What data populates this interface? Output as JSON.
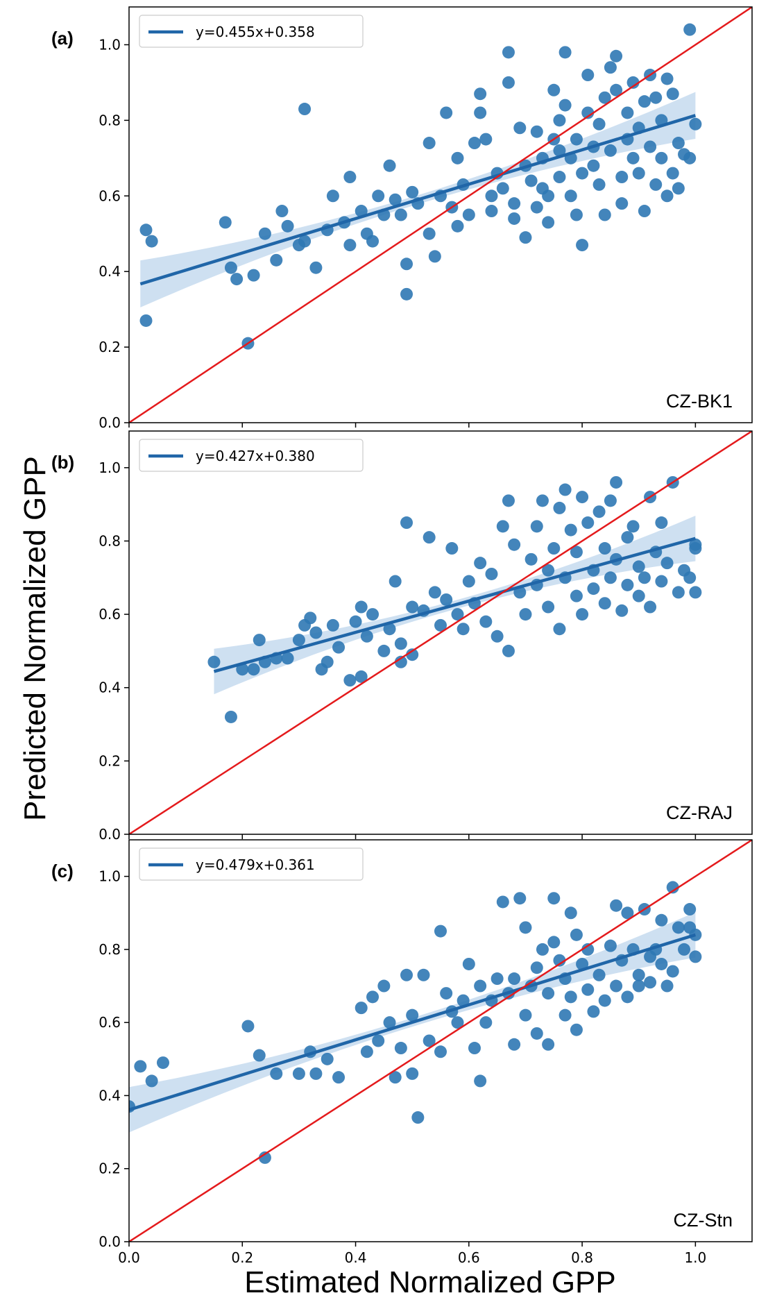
{
  "figure": {
    "ylabel": "Predicted Normalized GPP",
    "xlabel": "Estimated Normalized GPP",
    "colors": {
      "points": "#2f78b4",
      "fit_line": "#2066a8",
      "band": "#c6dbef",
      "identity_line": "#e41a1c"
    }
  },
  "chart_data": [
    {
      "type": "scatter",
      "panel_label": "(a)",
      "site": "CZ-BK1",
      "legend": "y=0.455x+0.358",
      "fit": {
        "slope": 0.455,
        "intercept": 0.358,
        "x_range": [
          0.02,
          1.0
        ]
      },
      "xlim": [
        0.0,
        1.1
      ],
      "ylim": [
        0.0,
        1.1
      ],
      "xticks": [
        0.0,
        0.2,
        0.4,
        0.6,
        0.8,
        1.0
      ],
      "yticks": [
        "0.0",
        "0.2",
        "0.4",
        "0.6",
        "0.8",
        "1.0"
      ],
      "points": [
        [
          0.03,
          0.51
        ],
        [
          0.04,
          0.48
        ],
        [
          0.03,
          0.27
        ],
        [
          0.17,
          0.53
        ],
        [
          0.18,
          0.41
        ],
        [
          0.19,
          0.38
        ],
        [
          0.21,
          0.21
        ],
        [
          0.22,
          0.39
        ],
        [
          0.24,
          0.5
        ],
        [
          0.26,
          0.43
        ],
        [
          0.27,
          0.56
        ],
        [
          0.28,
          0.52
        ],
        [
          0.3,
          0.47
        ],
        [
          0.31,
          0.48
        ],
        [
          0.31,
          0.83
        ],
        [
          0.33,
          0.41
        ],
        [
          0.35,
          0.51
        ],
        [
          0.36,
          0.6
        ],
        [
          0.38,
          0.53
        ],
        [
          0.39,
          0.65
        ],
        [
          0.39,
          0.47
        ],
        [
          0.41,
          0.56
        ],
        [
          0.42,
          0.5
        ],
        [
          0.43,
          0.48
        ],
        [
          0.44,
          0.6
        ],
        [
          0.45,
          0.55
        ],
        [
          0.46,
          0.68
        ],
        [
          0.47,
          0.59
        ],
        [
          0.48,
          0.55
        ],
        [
          0.49,
          0.42
        ],
        [
          0.49,
          0.34
        ],
        [
          0.5,
          0.61
        ],
        [
          0.51,
          0.58
        ],
        [
          0.53,
          0.74
        ],
        [
          0.53,
          0.5
        ],
        [
          0.54,
          0.44
        ],
        [
          0.55,
          0.6
        ],
        [
          0.56,
          0.82
        ],
        [
          0.57,
          0.57
        ],
        [
          0.58,
          0.7
        ],
        [
          0.58,
          0.52
        ],
        [
          0.59,
          0.63
        ],
        [
          0.6,
          0.55
        ],
        [
          0.61,
          0.74
        ],
        [
          0.62,
          0.82
        ],
        [
          0.62,
          0.87
        ],
        [
          0.63,
          0.75
        ],
        [
          0.64,
          0.6
        ],
        [
          0.64,
          0.56
        ],
        [
          0.65,
          0.66
        ],
        [
          0.66,
          0.62
        ],
        [
          0.67,
          0.9
        ],
        [
          0.67,
          0.98
        ],
        [
          0.68,
          0.58
        ],
        [
          0.68,
          0.54
        ],
        [
          0.69,
          0.78
        ],
        [
          0.7,
          0.49
        ],
        [
          0.7,
          0.68
        ],
        [
          0.71,
          0.64
        ],
        [
          0.72,
          0.57
        ],
        [
          0.72,
          0.77
        ],
        [
          0.73,
          0.7
        ],
        [
          0.73,
          0.62
        ],
        [
          0.74,
          0.6
        ],
        [
          0.74,
          0.53
        ],
        [
          0.75,
          0.75
        ],
        [
          0.75,
          0.88
        ],
        [
          0.76,
          0.72
        ],
        [
          0.76,
          0.8
        ],
        [
          0.76,
          0.65
        ],
        [
          0.77,
          0.84
        ],
        [
          0.77,
          0.98
        ],
        [
          0.78,
          0.7
        ],
        [
          0.78,
          0.6
        ],
        [
          0.79,
          0.75
        ],
        [
          0.79,
          0.55
        ],
        [
          0.8,
          0.66
        ],
        [
          0.8,
          0.47
        ],
        [
          0.81,
          0.82
        ],
        [
          0.81,
          0.92
        ],
        [
          0.82,
          0.73
        ],
        [
          0.82,
          0.68
        ],
        [
          0.83,
          0.79
        ],
        [
          0.83,
          0.63
        ],
        [
          0.84,
          0.86
        ],
        [
          0.84,
          0.55
        ],
        [
          0.85,
          0.94
        ],
        [
          0.85,
          0.72
        ],
        [
          0.86,
          0.88
        ],
        [
          0.86,
          0.97
        ],
        [
          0.87,
          0.65
        ],
        [
          0.87,
          0.58
        ],
        [
          0.88,
          0.75
        ],
        [
          0.88,
          0.82
        ],
        [
          0.89,
          0.7
        ],
        [
          0.89,
          0.9
        ],
        [
          0.9,
          0.66
        ],
        [
          0.9,
          0.78
        ],
        [
          0.91,
          0.56
        ],
        [
          0.91,
          0.85
        ],
        [
          0.92,
          0.92
        ],
        [
          0.92,
          0.73
        ],
        [
          0.93,
          0.86
        ],
        [
          0.93,
          0.63
        ],
        [
          0.94,
          0.7
        ],
        [
          0.94,
          0.8
        ],
        [
          0.95,
          0.6
        ],
        [
          0.95,
          0.91
        ],
        [
          0.96,
          0.87
        ],
        [
          0.96,
          0.66
        ],
        [
          0.97,
          0.74
        ],
        [
          0.97,
          0.62
        ],
        [
          0.98,
          0.71
        ],
        [
          0.99,
          1.04
        ],
        [
          0.99,
          0.7
        ],
        [
          1.0,
          0.79
        ]
      ]
    },
    {
      "type": "scatter",
      "panel_label": "(b)",
      "site": "CZ-RAJ",
      "legend": "y=0.427x+0.380",
      "fit": {
        "slope": 0.427,
        "intercept": 0.38,
        "x_range": [
          0.15,
          1.0
        ]
      },
      "xlim": [
        0.0,
        1.1
      ],
      "ylim": [
        0.0,
        1.1
      ],
      "xticks": [
        0.0,
        0.2,
        0.4,
        0.6,
        0.8,
        1.0
      ],
      "yticks": [
        "0.0",
        "0.2",
        "0.4",
        "0.6",
        "0.8",
        "1.0"
      ],
      "points": [
        [
          0.15,
          0.47
        ],
        [
          0.18,
          0.32
        ],
        [
          0.2,
          0.45
        ],
        [
          0.22,
          0.45
        ],
        [
          0.23,
          0.53
        ],
        [
          0.24,
          0.47
        ],
        [
          0.26,
          0.48
        ],
        [
          0.28,
          0.48
        ],
        [
          0.3,
          0.53
        ],
        [
          0.31,
          0.57
        ],
        [
          0.32,
          0.59
        ],
        [
          0.33,
          0.55
        ],
        [
          0.34,
          0.45
        ],
        [
          0.35,
          0.47
        ],
        [
          0.36,
          0.57
        ],
        [
          0.37,
          0.51
        ],
        [
          0.39,
          0.42
        ],
        [
          0.4,
          0.58
        ],
        [
          0.41,
          0.62
        ],
        [
          0.41,
          0.43
        ],
        [
          0.42,
          0.54
        ],
        [
          0.43,
          0.6
        ],
        [
          0.45,
          0.5
        ],
        [
          0.46,
          0.56
        ],
        [
          0.47,
          0.69
        ],
        [
          0.48,
          0.52
        ],
        [
          0.48,
          0.47
        ],
        [
          0.49,
          0.85
        ],
        [
          0.5,
          0.62
        ],
        [
          0.5,
          0.49
        ],
        [
          0.52,
          0.61
        ],
        [
          0.53,
          0.81
        ],
        [
          0.54,
          0.66
        ],
        [
          0.55,
          0.57
        ],
        [
          0.56,
          0.64
        ],
        [
          0.57,
          0.78
        ],
        [
          0.58,
          0.6
        ],
        [
          0.59,
          0.56
        ],
        [
          0.6,
          0.69
        ],
        [
          0.61,
          0.63
        ],
        [
          0.62,
          0.74
        ],
        [
          0.63,
          0.58
        ],
        [
          0.64,
          0.71
        ],
        [
          0.65,
          0.54
        ],
        [
          0.66,
          0.84
        ],
        [
          0.67,
          0.91
        ],
        [
          0.67,
          0.5
        ],
        [
          0.68,
          0.79
        ],
        [
          0.69,
          0.66
        ],
        [
          0.7,
          0.6
        ],
        [
          0.71,
          0.75
        ],
        [
          0.72,
          0.68
        ],
        [
          0.72,
          0.84
        ],
        [
          0.73,
          0.91
        ],
        [
          0.74,
          0.62
        ],
        [
          0.74,
          0.72
        ],
        [
          0.75,
          0.78
        ],
        [
          0.76,
          0.89
        ],
        [
          0.76,
          0.56
        ],
        [
          0.77,
          0.94
        ],
        [
          0.77,
          0.7
        ],
        [
          0.78,
          0.83
        ],
        [
          0.79,
          0.65
        ],
        [
          0.79,
          0.77
        ],
        [
          0.8,
          0.92
        ],
        [
          0.8,
          0.6
        ],
        [
          0.81,
          0.85
        ],
        [
          0.82,
          0.72
        ],
        [
          0.82,
          0.67
        ],
        [
          0.83,
          0.88
        ],
        [
          0.84,
          0.78
        ],
        [
          0.84,
          0.63
        ],
        [
          0.85,
          0.91
        ],
        [
          0.85,
          0.7
        ],
        [
          0.86,
          0.96
        ],
        [
          0.86,
          0.75
        ],
        [
          0.87,
          0.61
        ],
        [
          0.88,
          0.81
        ],
        [
          0.88,
          0.68
        ],
        [
          0.89,
          0.84
        ],
        [
          0.9,
          0.73
        ],
        [
          0.9,
          0.65
        ],
        [
          0.91,
          0.7
        ],
        [
          0.92,
          0.92
        ],
        [
          0.92,
          0.62
        ],
        [
          0.93,
          0.77
        ],
        [
          0.94,
          0.69
        ],
        [
          0.94,
          0.85
        ],
        [
          0.95,
          0.74
        ],
        [
          0.96,
          0.96
        ],
        [
          0.97,
          0.66
        ],
        [
          0.98,
          0.72
        ],
        [
          0.99,
          0.7
        ],
        [
          1.0,
          0.78
        ],
        [
          1.0,
          0.66
        ],
        [
          1.0,
          0.79
        ]
      ]
    },
    {
      "type": "scatter",
      "panel_label": "(c)",
      "site": "CZ-Stn",
      "legend": "y=0.479x+0.361",
      "fit": {
        "slope": 0.479,
        "intercept": 0.361,
        "x_range": [
          0.0,
          1.0
        ]
      },
      "xlim": [
        0.0,
        1.1
      ],
      "ylim": [
        0.0,
        1.1
      ],
      "xticks": [
        "0.0",
        "0.2",
        "0.4",
        "0.6",
        "0.8",
        "1.0"
      ],
      "yticks": [
        "0.0",
        "0.2",
        "0.4",
        "0.6",
        "0.8",
        "1.0"
      ],
      "points": [
        [
          0.0,
          0.37
        ],
        [
          0.02,
          0.48
        ],
        [
          0.04,
          0.44
        ],
        [
          0.06,
          0.49
        ],
        [
          0.21,
          0.59
        ],
        [
          0.23,
          0.51
        ],
        [
          0.24,
          0.23
        ],
        [
          0.26,
          0.46
        ],
        [
          0.3,
          0.46
        ],
        [
          0.32,
          0.52
        ],
        [
          0.33,
          0.46
        ],
        [
          0.35,
          0.5
        ],
        [
          0.37,
          0.45
        ],
        [
          0.41,
          0.64
        ],
        [
          0.42,
          0.52
        ],
        [
          0.43,
          0.67
        ],
        [
          0.44,
          0.55
        ],
        [
          0.45,
          0.7
        ],
        [
          0.46,
          0.6
        ],
        [
          0.47,
          0.45
        ],
        [
          0.48,
          0.53
        ],
        [
          0.49,
          0.73
        ],
        [
          0.5,
          0.46
        ],
        [
          0.5,
          0.62
        ],
        [
          0.51,
          0.34
        ],
        [
          0.52,
          0.73
        ],
        [
          0.53,
          0.55
        ],
        [
          0.55,
          0.52
        ],
        [
          0.55,
          0.85
        ],
        [
          0.56,
          0.68
        ],
        [
          0.57,
          0.63
        ],
        [
          0.58,
          0.6
        ],
        [
          0.59,
          0.66
        ],
        [
          0.6,
          0.76
        ],
        [
          0.61,
          0.53
        ],
        [
          0.62,
          0.44
        ],
        [
          0.62,
          0.7
        ],
        [
          0.63,
          0.6
        ],
        [
          0.64,
          0.66
        ],
        [
          0.65,
          0.72
        ],
        [
          0.66,
          0.93
        ],
        [
          0.67,
          0.68
        ],
        [
          0.68,
          0.72
        ],
        [
          0.68,
          0.54
        ],
        [
          0.69,
          0.94
        ],
        [
          0.7,
          0.62
        ],
        [
          0.7,
          0.86
        ],
        [
          0.71,
          0.7
        ],
        [
          0.72,
          0.57
        ],
        [
          0.72,
          0.75
        ],
        [
          0.73,
          0.8
        ],
        [
          0.74,
          0.54
        ],
        [
          0.74,
          0.68
        ],
        [
          0.75,
          0.94
        ],
        [
          0.75,
          0.82
        ],
        [
          0.76,
          0.77
        ],
        [
          0.77,
          0.62
        ],
        [
          0.77,
          0.72
        ],
        [
          0.78,
          0.9
        ],
        [
          0.78,
          0.67
        ],
        [
          0.79,
          0.84
        ],
        [
          0.79,
          0.58
        ],
        [
          0.8,
          0.76
        ],
        [
          0.81,
          0.69
        ],
        [
          0.81,
          0.8
        ],
        [
          0.82,
          0.63
        ],
        [
          0.83,
          0.73
        ],
        [
          0.84,
          0.66
        ],
        [
          0.85,
          0.81
        ],
        [
          0.86,
          0.92
        ],
        [
          0.86,
          0.7
        ],
        [
          0.87,
          0.77
        ],
        [
          0.88,
          0.9
        ],
        [
          0.88,
          0.67
        ],
        [
          0.89,
          0.8
        ],
        [
          0.9,
          0.73
        ],
        [
          0.9,
          0.7
        ],
        [
          0.91,
          0.91
        ],
        [
          0.92,
          0.78
        ],
        [
          0.92,
          0.71
        ],
        [
          0.93,
          0.8
        ],
        [
          0.94,
          0.76
        ],
        [
          0.94,
          0.88
        ],
        [
          0.95,
          0.7
        ],
        [
          0.96,
          0.97
        ],
        [
          0.96,
          0.74
        ],
        [
          0.97,
          0.86
        ],
        [
          0.98,
          0.8
        ],
        [
          0.99,
          0.86
        ],
        [
          0.99,
          0.91
        ],
        [
          1.0,
          0.78
        ],
        [
          1.0,
          0.84
        ]
      ]
    }
  ]
}
